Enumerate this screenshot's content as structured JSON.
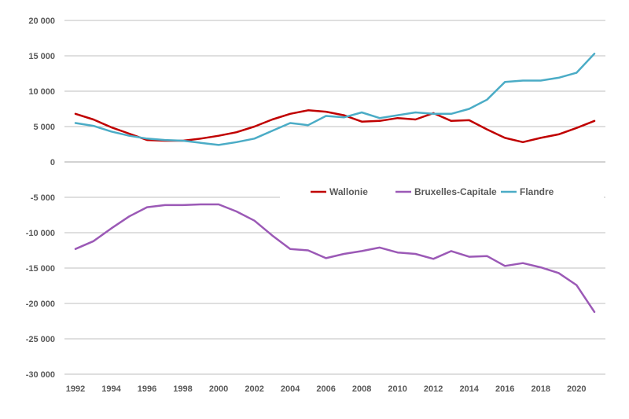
{
  "chart_data": {
    "type": "line",
    "x": [
      1992,
      1993,
      1994,
      1995,
      1996,
      1997,
      1998,
      1999,
      2000,
      2001,
      2002,
      2003,
      2004,
      2005,
      2006,
      2007,
      2008,
      2009,
      2010,
      2011,
      2012,
      2013,
      2014,
      2015,
      2016,
      2017,
      2018,
      2019,
      2020,
      2021
    ],
    "x_tick_labels": [
      "1992",
      "1994",
      "1996",
      "1998",
      "2000",
      "2002",
      "2004",
      "2006",
      "2008",
      "2010",
      "2012",
      "2014",
      "2016",
      "2018",
      "2020"
    ],
    "y_tick_labels": [
      "20 000",
      "15 000",
      "10 000",
      "5 000",
      "0",
      "-5 000",
      "-10 000",
      "-15 000",
      "-20 000",
      "-25 000",
      "-30 000"
    ],
    "ylim": [
      -30000,
      20000
    ],
    "grid": true,
    "legend_position": "middle-right",
    "series": [
      {
        "name": "Wallonie",
        "color": "#C00000",
        "values": [
          6800,
          6000,
          4900,
          4000,
          3100,
          3000,
          3000,
          3300,
          3700,
          4200,
          5000,
          6000,
          6800,
          7300,
          7100,
          6600,
          5700,
          5800,
          6200,
          6000,
          6900,
          5800,
          5900,
          4600,
          3400,
          2800,
          3400,
          3900,
          4800,
          5800
        ]
      },
      {
        "name": "Bruxelles-Capitale",
        "color": "#9B59B6",
        "values": [
          -12300,
          -11200,
          -9400,
          -7700,
          -6400,
          -6100,
          -6100,
          -6000,
          -6000,
          -7000,
          -8300,
          -10400,
          -12300,
          -12500,
          -13600,
          -13000,
          -12600,
          -12100,
          -12800,
          -13000,
          -13700,
          -12600,
          -13400,
          -13300,
          -14700,
          -14300,
          -14900,
          -15700,
          -17400,
          -21200
        ]
      },
      {
        "name": "Flandre",
        "color": "#4BACC6",
        "values": [
          5500,
          5100,
          4300,
          3700,
          3300,
          3100,
          3000,
          2700,
          2400,
          2800,
          3300,
          4400,
          5500,
          5200,
          6500,
          6300,
          7000,
          6200,
          6600,
          7000,
          6800,
          6800,
          7500,
          8800,
          11300,
          11500,
          11500,
          11900,
          12600,
          15300
        ]
      }
    ]
  }
}
